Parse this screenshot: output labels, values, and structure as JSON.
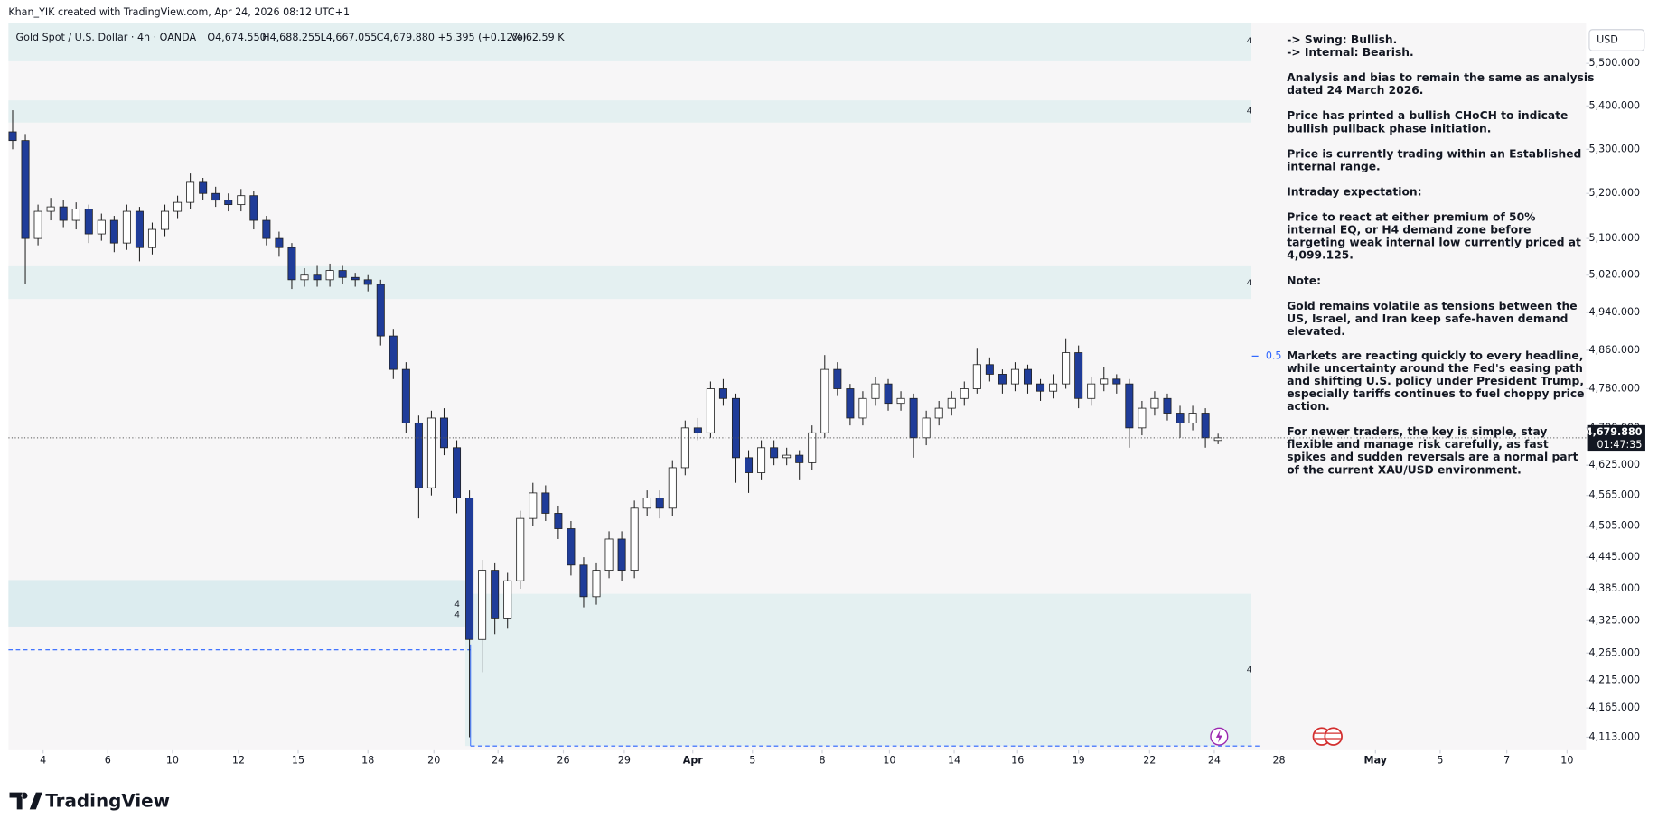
{
  "chart_data": {
    "type": "candlestick",
    "created_by": "Khan_YIK created with TradingView.com, Apr 24, 2026 08:12 UTC+1",
    "title": "Gold Spot / U.S. Dollar · 4h · OANDA",
    "ohlc_legend": [
      "O4,674.550",
      "H4,688.255",
      "L4,667.055",
      "C4,679.880",
      "+5.395 (+0.12%)",
      "Vol62.59 K"
    ],
    "currency": "USD",
    "last_price_label": "4,679.880",
    "countdown": "01:47:35",
    "fib_label": "0.5",
    "zone_labels": [
      "4",
      "4",
      "4",
      "4",
      "4",
      "4"
    ],
    "brand": "TradingView",
    "annotation": [
      [
        "-> Swing:  Bullish."
      ],
      [
        "-> Internal:  Bearish."
      ],
      [
        "Analysis and bias to remain the same as analysis",
        "dated 24 March 2026."
      ],
      [
        "Price has printed a bullish CHoCH to indicate",
        "bullish pullback phase initiation."
      ],
      [
        "Price is currently trading within an Established",
        "internal range."
      ],
      [
        "Intraday expectation:"
      ],
      [
        "Price to react at either premium of 50%",
        "internal EQ, or H4 demand zone before",
        "targeting weak internal low currently priced at",
        "4,099.125."
      ],
      [
        "Note:"
      ],
      [
        "Gold remains volatile as tensions between the",
        "US, Israel, and Iran keep safe-haven demand",
        "elevated."
      ],
      [
        "Markets are reacting quickly to every headline,",
        "while uncertainty around the Fed's easing path",
        "and shifting U.S. policy under President Trump,",
        "especially tariffs continues to fuel choppy price",
        "action."
      ],
      [
        "For newer traders, the key is simple, stay",
        "flexible and manage risk carefully, as fast",
        "spikes and sudden reversals are a normal part",
        "of the current XAU/USD environment."
      ]
    ],
    "log_scale": true,
    "up_color": "#ffffff",
    "down_color": "#1f3c99",
    "border_color": "#222222",
    "xlim": [
      -0.33,
      124
    ],
    "xticks": [
      {
        "value": 2.4,
        "label": "4"
      },
      {
        "value": 7.5,
        "label": "6"
      },
      {
        "value": 12.6,
        "label": "10"
      },
      {
        "value": 17.8,
        "label": "12"
      },
      {
        "value": 22.5,
        "label": "15"
      },
      {
        "value": 28,
        "label": "18"
      },
      {
        "value": 33.2,
        "label": "20"
      },
      {
        "value": 38.25,
        "label": "24"
      },
      {
        "value": 43.4,
        "label": "26"
      },
      {
        "value": 48.2,
        "label": "29"
      },
      {
        "value": 53.6,
        "label": "Apr"
      },
      {
        "value": 58.3,
        "label": "5"
      },
      {
        "value": 63.8,
        "label": "8"
      },
      {
        "value": 69.1,
        "label": "10"
      },
      {
        "value": 74.2,
        "label": "14"
      },
      {
        "value": 79.2,
        "label": "16"
      },
      {
        "value": 84,
        "label": "19"
      },
      {
        "value": 89.6,
        "label": "22"
      },
      {
        "value": 94.7,
        "label": "24"
      },
      {
        "value": 99.8,
        "label": "28"
      },
      {
        "value": 107.4,
        "label": "May"
      },
      {
        "value": 112.5,
        "label": "5"
      },
      {
        "value": 117.75,
        "label": "7"
      },
      {
        "value": 122.5,
        "label": "10"
      }
    ],
    "ylim": [
      4090,
      5596
    ],
    "yticks": [
      {
        "value": 5500,
        "label": "5,500.000"
      },
      {
        "value": 5400,
        "label": "5,400.000"
      },
      {
        "value": 5300,
        "label": "5,300.000"
      },
      {
        "value": 5200,
        "label": "5,200.000"
      },
      {
        "value": 5100,
        "label": "5,100.000"
      },
      {
        "value": 5020,
        "label": "5,020.000"
      },
      {
        "value": 4940,
        "label": "4,940.000"
      },
      {
        "value": 4860,
        "label": "4,860.000"
      },
      {
        "value": 4780,
        "label": "4,780.000"
      },
      {
        "value": 4700,
        "label": "4,700.000"
      },
      {
        "value": 4625,
        "label": "4,625.000"
      },
      {
        "value": 4565,
        "label": "4,565.000"
      },
      {
        "value": 4505,
        "label": "4,505.000"
      },
      {
        "value": 4445,
        "label": "4,445.000"
      },
      {
        "value": 4385,
        "label": "4,385.000"
      },
      {
        "value": 4325,
        "label": "4,325.000"
      },
      {
        "value": 4265,
        "label": "4,265.000"
      },
      {
        "value": 4215,
        "label": "4,215.000"
      },
      {
        "value": 4165,
        "label": "4,165.000"
      },
      {
        "value": 4113,
        "label": "4,113.000"
      }
    ],
    "open": [
      5340,
      5320,
      5100,
      5160,
      5170,
      5140,
      5165,
      5110,
      5140,
      5090,
      5160,
      5080,
      5120,
      5160,
      5180,
      5225,
      5200,
      5185,
      5175,
      5195,
      5140,
      5100,
      5080,
      5010,
      5020,
      5010,
      5030,
      5015,
      5010,
      5000,
      4890,
      4820,
      4710,
      4580,
      4720,
      4660,
      4560,
      4290,
      4420,
      4330,
      4400,
      4520,
      4570,
      4530,
      4500,
      4430,
      4370,
      4420,
      4480,
      4420,
      4540,
      4560,
      4540,
      4620,
      4700,
      4690,
      4780,
      4760,
      4640,
      4610,
      4660,
      4640,
      4645,
      4630,
      4690,
      4820,
      4780,
      4720,
      4760,
      4790,
      4750,
      4760,
      4680,
      4720,
      4740,
      4760,
      4780,
      4830,
      4810,
      4790,
      4820,
      4790,
      4775,
      4790,
      4855,
      4760,
      4790,
      4800,
      4790,
      4700,
      4740,
      4760,
      4730,
      4710,
      4730,
      4674.55
    ],
    "high": [
      5390,
      5335,
      5175,
      5190,
      5185,
      5180,
      5175,
      5155,
      5150,
      5175,
      5170,
      5135,
      5175,
      5195,
      5245,
      5235,
      5215,
      5200,
      5210,
      5205,
      5150,
      5115,
      5090,
      5035,
      5040,
      5045,
      5040,
      5025,
      5020,
      5010,
      4905,
      4835,
      4725,
      4735,
      4740,
      4675,
      4575,
      4440,
      4435,
      4415,
      4535,
      4590,
      4585,
      4545,
      4515,
      4445,
      4435,
      4495,
      4495,
      4555,
      4575,
      4575,
      4635,
      4715,
      4720,
      4795,
      4800,
      4770,
      4655,
      4675,
      4675,
      4660,
      4655,
      4705,
      4850,
      4835,
      4790,
      4775,
      4805,
      4800,
      4775,
      4770,
      4735,
      4755,
      4775,
      4795,
      4865,
      4845,
      4820,
      4835,
      4830,
      4800,
      4810,
      4885,
      4870,
      4805,
      4825,
      4810,
      4800,
      4755,
      4775,
      4770,
      4745,
      4745,
      4740,
      4688.255
    ],
    "low": [
      5300,
      5000,
      5085,
      5140,
      5125,
      5120,
      5090,
      5095,
      5070,
      5075,
      5050,
      5065,
      5105,
      5145,
      5165,
      5185,
      5170,
      5160,
      5160,
      5120,
      5085,
      5060,
      4990,
      4995,
      4995,
      4995,
      5000,
      4995,
      4985,
      4870,
      4800,
      4690,
      4520,
      4565,
      4645,
      4530,
      4113,
      4230,
      4300,
      4310,
      4385,
      4505,
      4515,
      4480,
      4410,
      4350,
      4355,
      4405,
      4400,
      4405,
      4525,
      4520,
      4525,
      4605,
      4675,
      4680,
      4745,
      4590,
      4570,
      4595,
      4625,
      4625,
      4595,
      4615,
      4680,
      4765,
      4705,
      4705,
      4745,
      4735,
      4735,
      4640,
      4665,
      4705,
      4725,
      4745,
      4770,
      4795,
      4770,
      4775,
      4770,
      4755,
      4760,
      4780,
      4740,
      4745,
      4775,
      4770,
      4660,
      4685,
      4725,
      4715,
      4680,
      4695,
      4660,
      4667.055
    ],
    "close": [
      5320,
      5100,
      5160,
      5170,
      5140,
      5165,
      5110,
      5140,
      5090,
      5160,
      5080,
      5120,
      5160,
      5180,
      5225,
      5200,
      5185,
      5175,
      5195,
      5140,
      5100,
      5080,
      5010,
      5020,
      5010,
      5030,
      5015,
      5010,
      5000,
      4890,
      4820,
      4710,
      4580,
      4720,
      4660,
      4560,
      4290,
      4420,
      4330,
      4400,
      4520,
      4570,
      4530,
      4500,
      4430,
      4370,
      4420,
      4480,
      4420,
      4540,
      4560,
      4540,
      4620,
      4700,
      4690,
      4780,
      4760,
      4640,
      4610,
      4660,
      4640,
      4645,
      4630,
      4690,
      4820,
      4780,
      4720,
      4760,
      4790,
      4750,
      4760,
      4680,
      4720,
      4740,
      4760,
      4780,
      4830,
      4810,
      4790,
      4820,
      4790,
      4775,
      4790,
      4855,
      4760,
      4790,
      4800,
      4790,
      4700,
      4740,
      4760,
      4730,
      4710,
      4730,
      4680,
      4679.88
    ]
  }
}
